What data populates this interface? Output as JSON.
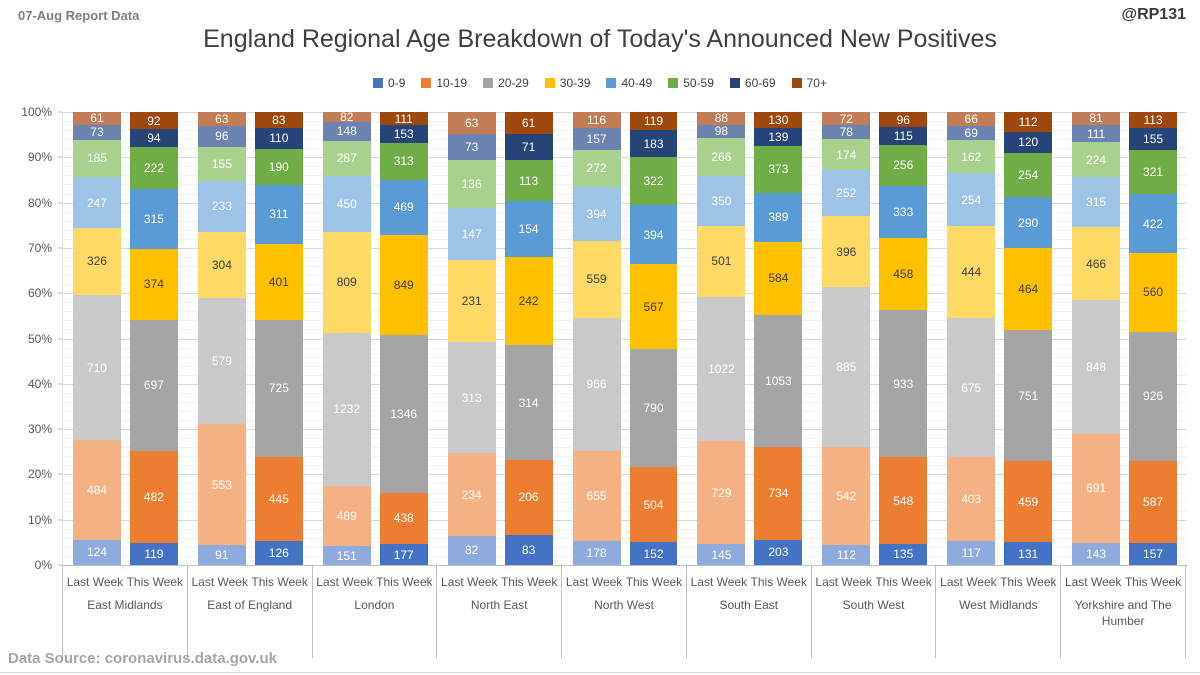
{
  "header": {
    "report_label": "07-Aug Report Data",
    "handle": "@RP131"
  },
  "footer": {
    "data_source": "Data Source: coronavirus.data.gov.uk"
  },
  "chart_data": {
    "type": "bar",
    "variant": "100%-stacked-column",
    "title": "England Regional Age Breakdown of Today's Announced New Positives",
    "legend_position": "top",
    "grid": "major-and-minor-horizontal",
    "ylim": [
      0,
      100
    ],
    "y_axis_ticks": [
      "0%",
      "10%",
      "20%",
      "30%",
      "40%",
      "50%",
      "60%",
      "70%",
      "80%",
      "90%",
      "100%"
    ],
    "week_labels": [
      "Last Week",
      "This Week"
    ],
    "age_bands": [
      {
        "label": "0-9",
        "color_this_week": "#4472C4",
        "color_last_week": "#8FAADC",
        "label_text_color": "#FFFFFF"
      },
      {
        "label": "10-19",
        "color_this_week": "#ED7D31",
        "color_last_week": "#F4B183",
        "label_text_color": "#FFFFFF"
      },
      {
        "label": "20-29",
        "color_this_week": "#A5A5A5",
        "color_last_week": "#C9C9C9",
        "label_text_color": "#FFFFFF"
      },
      {
        "label": "30-39",
        "color_this_week": "#FFC000",
        "color_last_week": "#FFD966",
        "label_text_color": "#404040"
      },
      {
        "label": "40-49",
        "color_this_week": "#5B9BD5",
        "color_last_week": "#9DC3E6",
        "label_text_color": "#FFFFFF"
      },
      {
        "label": "50-59",
        "color_this_week": "#70AD47",
        "color_last_week": "#A9D18E",
        "label_text_color": "#FFFFFF"
      },
      {
        "label": "60-69",
        "color_this_week": "#264478",
        "color_last_week": "#6B83B0",
        "label_text_color": "#FFFFFF"
      },
      {
        "label": "70+",
        "color_this_week": "#9E480E",
        "color_last_week": "#C27C56",
        "label_text_color": "#FFFFFF"
      }
    ],
    "regions": [
      {
        "name": "East Midlands",
        "last_week": [
          124,
          484,
          710,
          326,
          247,
          185,
          73,
          61
        ],
        "this_week": [
          119,
          482,
          697,
          374,
          315,
          222,
          94,
          92
        ]
      },
      {
        "name": "East of England",
        "last_week": [
          91,
          553,
          579,
          304,
          233,
          155,
          96,
          63
        ],
        "this_week": [
          126,
          445,
          725,
          401,
          311,
          190,
          110,
          83
        ]
      },
      {
        "name": "London",
        "last_week": [
          151,
          489,
          1232,
          809,
          450,
          287,
          148,
          82
        ],
        "this_week": [
          177,
          438,
          1346,
          849,
          469,
          313,
          153,
          111
        ]
      },
      {
        "name": "North East",
        "last_week": [
          82,
          234,
          313,
          231,
          147,
          136,
          73,
          63
        ],
        "this_week": [
          83,
          206,
          314,
          242,
          154,
          113,
          71,
          61
        ]
      },
      {
        "name": "North West",
        "last_week": [
          178,
          655,
          966,
          559,
          394,
          272,
          157,
          116
        ],
        "this_week": [
          152,
          504,
          790,
          567,
          394,
          322,
          183,
          119
        ]
      },
      {
        "name": "South East",
        "last_week": [
          145,
          729,
          1022,
          501,
          350,
          266,
          98,
          88
        ],
        "this_week": [
          203,
          734,
          1053,
          584,
          389,
          373,
          139,
          130
        ]
      },
      {
        "name": "South West",
        "last_week": [
          112,
          542,
          885,
          396,
          252,
          174,
          78,
          72
        ],
        "this_week": [
          135,
          548,
          933,
          458,
          333,
          256,
          115,
          96
        ]
      },
      {
        "name": "West Midlands",
        "last_week": [
          117,
          403,
          675,
          444,
          254,
          162,
          69,
          66
        ],
        "this_week": [
          131,
          459,
          751,
          464,
          290,
          254,
          120,
          112
        ]
      },
      {
        "name": "Yorkshire and The Humber",
        "last_week": [
          143,
          691,
          848,
          466,
          315,
          224,
          111,
          81
        ],
        "this_week": [
          157,
          587,
          926,
          560,
          422,
          321,
          155,
          113
        ]
      }
    ],
    "gridline_colors": {
      "major": "#D9D9D9",
      "minor": "#F2F2F2"
    }
  }
}
